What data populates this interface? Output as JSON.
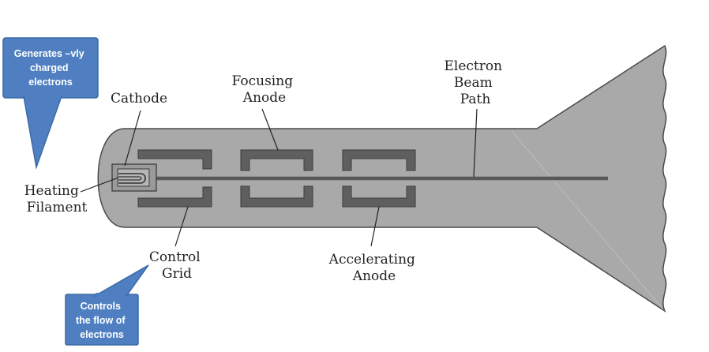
{
  "title": "",
  "labels": {
    "cathode": "Cathode",
    "heating_filament": [
      "Heating",
      "Filament"
    ],
    "control_grid": [
      "Control",
      "Grid"
    ],
    "focusing_anode": [
      "Focusing",
      "Anode"
    ],
    "accelerating_anode": [
      "Accelerating",
      "Anode"
    ],
    "electron_beam_path": [
      "Electron",
      "Beam",
      "Path"
    ]
  },
  "callouts": {
    "cathode_note": [
      "Generates –vly",
      "charged",
      "electrons"
    ],
    "grid_note": [
      "Controls",
      "the flow of",
      "electrons"
    ]
  },
  "colors": {
    "tube_fill": "#a9a9a9",
    "component": "#5f5f5f",
    "beam": "#585858",
    "callout_fill": "#4f7fc1",
    "callout_border": "#3b6aa8"
  }
}
